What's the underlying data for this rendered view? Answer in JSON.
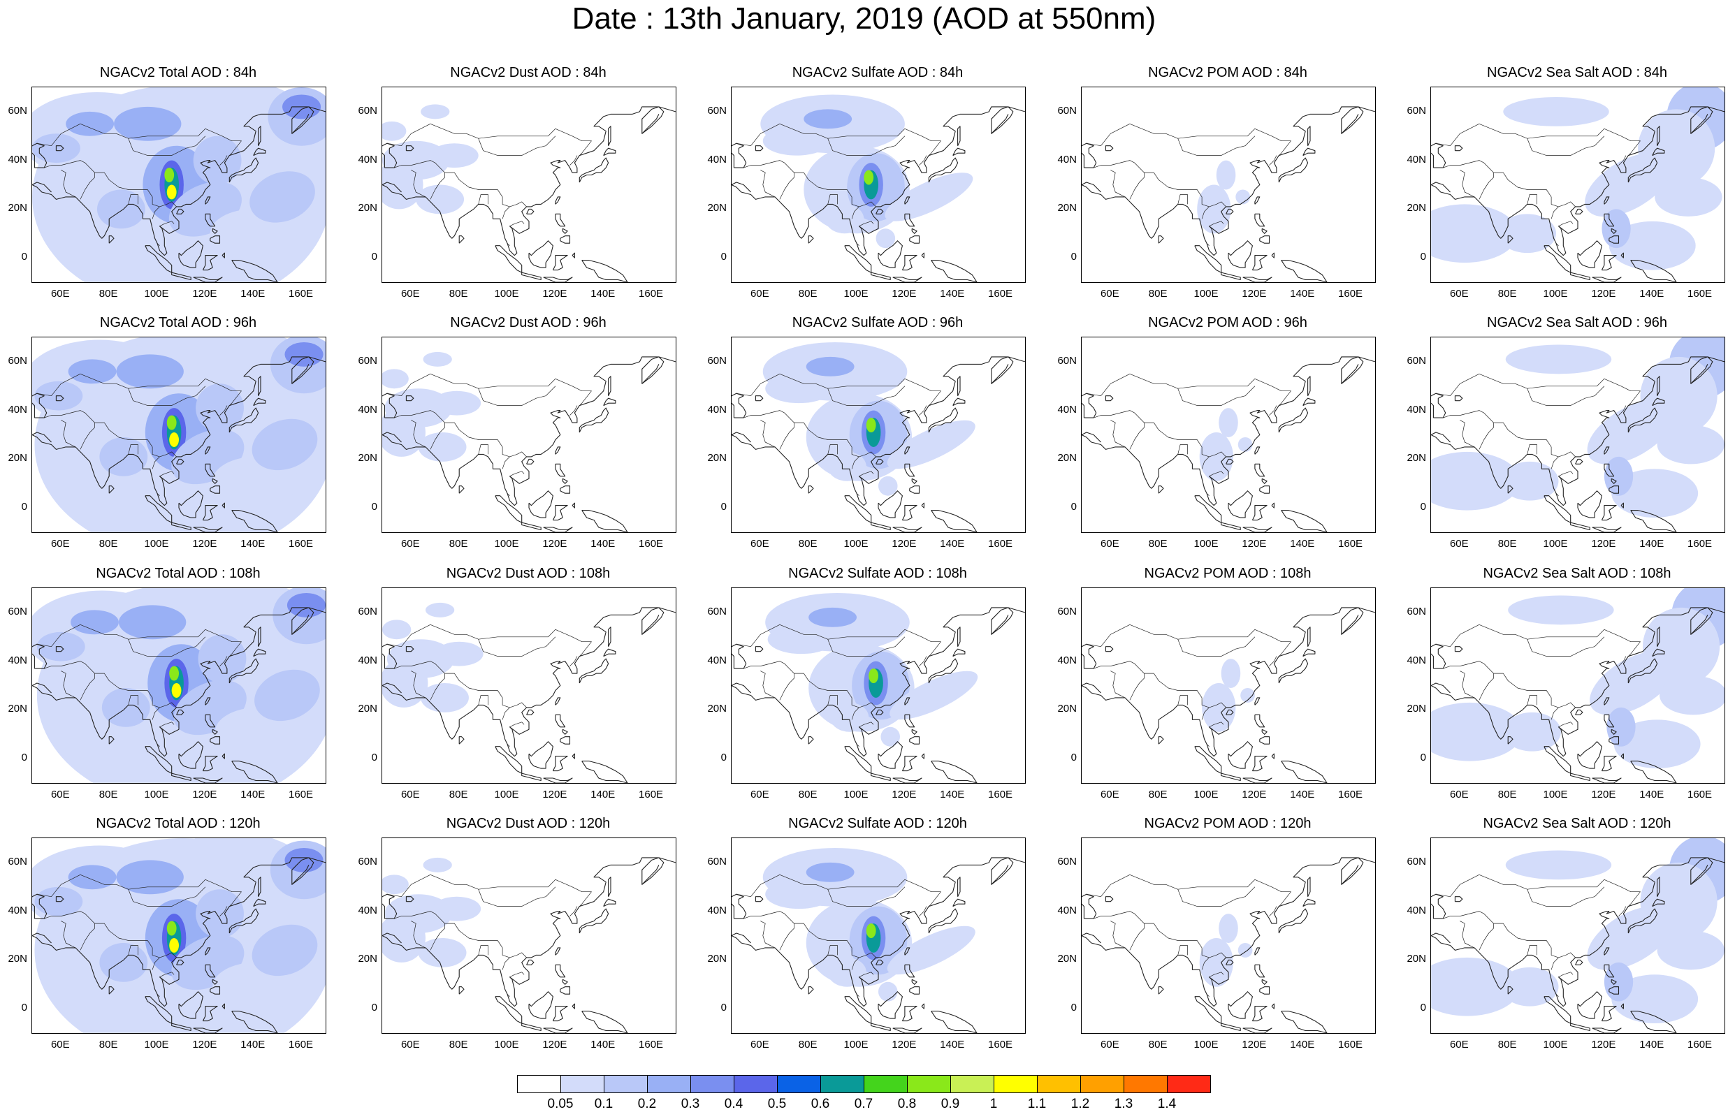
{
  "title": "Date : 13th January, 2019 (AOD at 550nm)",
  "lat_ticks": [
    "60N",
    "40N",
    "20N",
    "0"
  ],
  "lon_ticks": [
    "60E",
    "80E",
    "100E",
    "120E",
    "140E",
    "160E"
  ],
  "colors": {
    "land_outline": "#222222",
    "levels": [
      "#ffffff",
      "#d3dcfa",
      "#b9c8f8",
      "#99b0f5",
      "#7a8ff0",
      "#5b66ea",
      "#0a62e6",
      "#0a9a98",
      "#44d41c",
      "#8ae81a",
      "#c9f055",
      "#ffff00",
      "#ffc000",
      "#ffa000",
      "#ff7800",
      "#ff2a16"
    ]
  },
  "colorbar": {
    "labels": [
      "0.05",
      "0.1",
      "0.2",
      "0.3",
      "0.4",
      "0.5",
      "0.6",
      "0.7",
      "0.8",
      "0.9",
      "1",
      "1.1",
      "1.2",
      "1.3",
      "1.4"
    ]
  },
  "rows": [
    {
      "panels": [
        {
          "title": "NGACv2 Total AOD : 84h",
          "variable": "total"
        },
        {
          "title": "NGACv2 Dust AOD : 84h",
          "variable": "dust"
        },
        {
          "title": "NGACv2 Sulfate AOD : 84h",
          "variable": "sulfate"
        },
        {
          "title": "NGACv2 POM AOD : 84h",
          "variable": "pom"
        },
        {
          "title": "NGACv2 Sea Salt AOD : 84h",
          "variable": "seasalt"
        }
      ]
    },
    {
      "panels": [
        {
          "title": "NGACv2 Total AOD : 96h",
          "variable": "total"
        },
        {
          "title": "NGACv2 Dust AOD : 96h",
          "variable": "dust"
        },
        {
          "title": "NGACv2 Sulfate AOD : 96h",
          "variable": "sulfate"
        },
        {
          "title": "NGACv2 POM AOD : 96h",
          "variable": "pom"
        },
        {
          "title": "NGACv2 Sea Salt AOD : 96h",
          "variable": "seasalt"
        }
      ]
    },
    {
      "panels": [
        {
          "title": "NGACv2 Total AOD : 108h",
          "variable": "total"
        },
        {
          "title": "NGACv2 Dust AOD : 108h",
          "variable": "dust"
        },
        {
          "title": "NGACv2 Sulfate AOD : 108h",
          "variable": "sulfate"
        },
        {
          "title": "NGACv2 POM AOD : 108h",
          "variable": "pom"
        },
        {
          "title": "NGACv2 Sea Salt AOD : 108h",
          "variable": "seasalt"
        }
      ]
    },
    {
      "panels": [
        {
          "title": "NGACv2 Total AOD : 120h",
          "variable": "total"
        },
        {
          "title": "NGACv2 Dust AOD : 120h",
          "variable": "dust"
        },
        {
          "title": "NGACv2 Sulfate AOD : 120h",
          "variable": "sulfate"
        },
        {
          "title": "NGACv2 POM AOD : 120h",
          "variable": "pom"
        },
        {
          "title": "NGACv2 Sea Salt  AOD : 120h",
          "variable": "seasalt"
        }
      ]
    }
  ]
}
